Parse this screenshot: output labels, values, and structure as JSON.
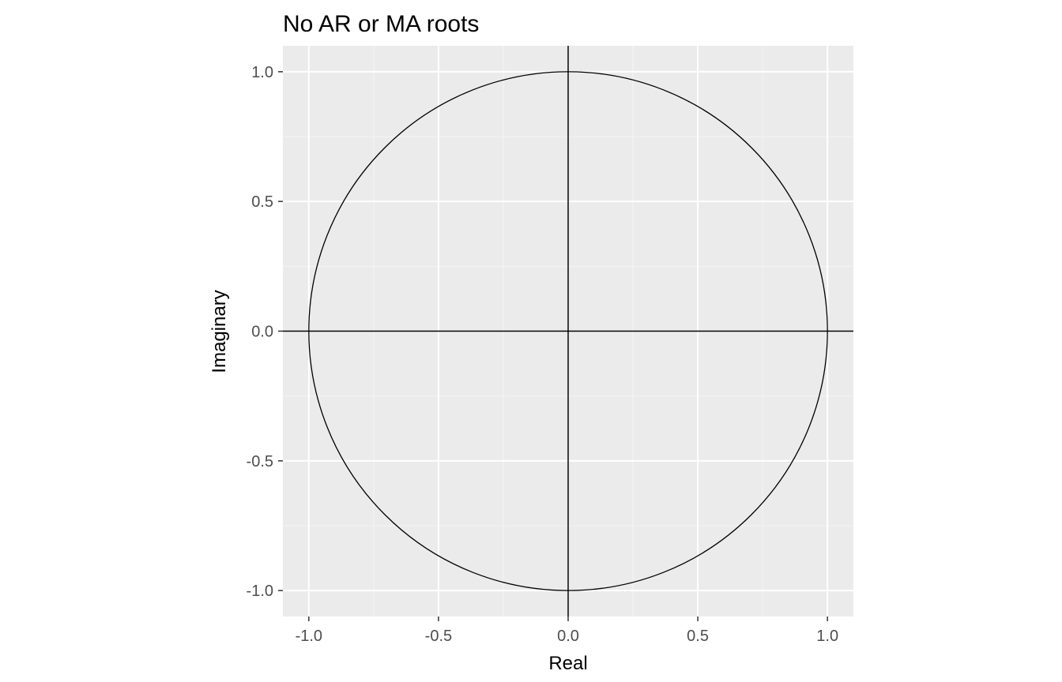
{
  "chart_data": {
    "type": "scatter",
    "title": "No AR or MA roots",
    "xlabel": "Real",
    "ylabel": "Imaginary",
    "xlim": [
      -1.1,
      1.1
    ],
    "ylim": [
      -1.1,
      1.1
    ],
    "x_ticks": [
      -1.0,
      -0.5,
      0.0,
      0.5,
      1.0
    ],
    "y_ticks": [
      -1.0,
      -0.5,
      0.0,
      0.5,
      1.0
    ],
    "x_tick_labels": [
      "-1.0",
      "-0.5",
      "0.0",
      "0.5",
      "1.0"
    ],
    "y_tick_labels": [
      "-1.0",
      "-0.5",
      "0.0",
      "0.5",
      "1.0"
    ],
    "unit_circle": {
      "center": [
        0,
        0
      ],
      "radius": 1
    },
    "reference_lines": {
      "vertical_at_x": 0,
      "horizontal_at_y": 0
    },
    "series": [],
    "grid": true,
    "legend": "none"
  },
  "colors": {
    "panel_background": "#EBEBEB",
    "grid_major": "#FFFFFF",
    "grid_minor": "#F5F5F5",
    "line": "#000000",
    "tick_label": "#4D4D4D",
    "tick_mark": "#333333"
  }
}
